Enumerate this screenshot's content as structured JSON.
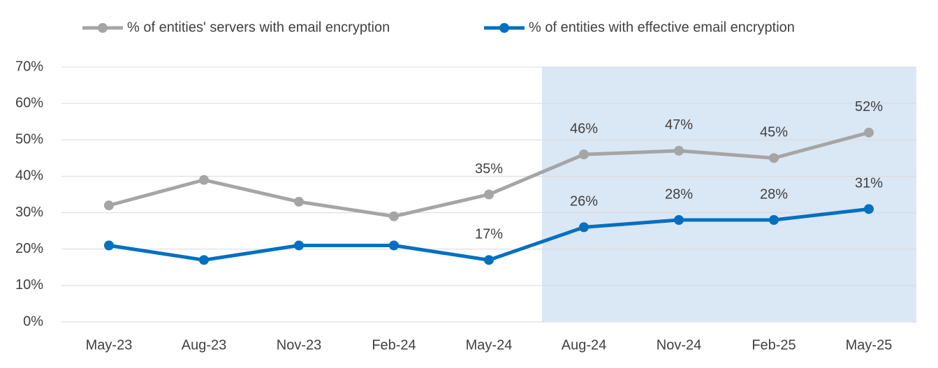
{
  "chart_data": {
    "type": "line",
    "categories": [
      "May-23",
      "Aug-23",
      "Nov-23",
      "Feb-24",
      "May-24",
      "Aug-24",
      "Nov-24",
      "Feb-25",
      "May-25"
    ],
    "series": [
      {
        "name": "% of entities' servers with email encryption",
        "color": "#a5a5a5",
        "values": [
          32,
          39,
          33,
          29,
          35,
          46,
          47,
          45,
          52
        ],
        "value_labels": [
          null,
          null,
          null,
          null,
          "35%",
          "46%",
          "47%",
          "45%",
          "52%"
        ]
      },
      {
        "name": "% of entities with effective email encryption",
        "color": "#0070c0",
        "values": [
          21,
          17,
          21,
          21,
          17,
          26,
          28,
          28,
          31
        ],
        "value_labels": [
          null,
          null,
          null,
          null,
          "17%",
          "26%",
          "28%",
          "28%",
          "31%"
        ]
      }
    ],
    "ylim": [
      0,
      70
    ],
    "yticks": [
      {
        "value": 0,
        "label": "0%"
      },
      {
        "value": 10,
        "label": "10%"
      },
      {
        "value": 20,
        "label": "20%"
      },
      {
        "value": 30,
        "label": "30%"
      },
      {
        "value": 40,
        "label": "40%"
      },
      {
        "value": 50,
        "label": "50%"
      },
      {
        "value": 60,
        "label": "60%"
      },
      {
        "value": 70,
        "label": "70%"
      }
    ],
    "grid": true
  }
}
